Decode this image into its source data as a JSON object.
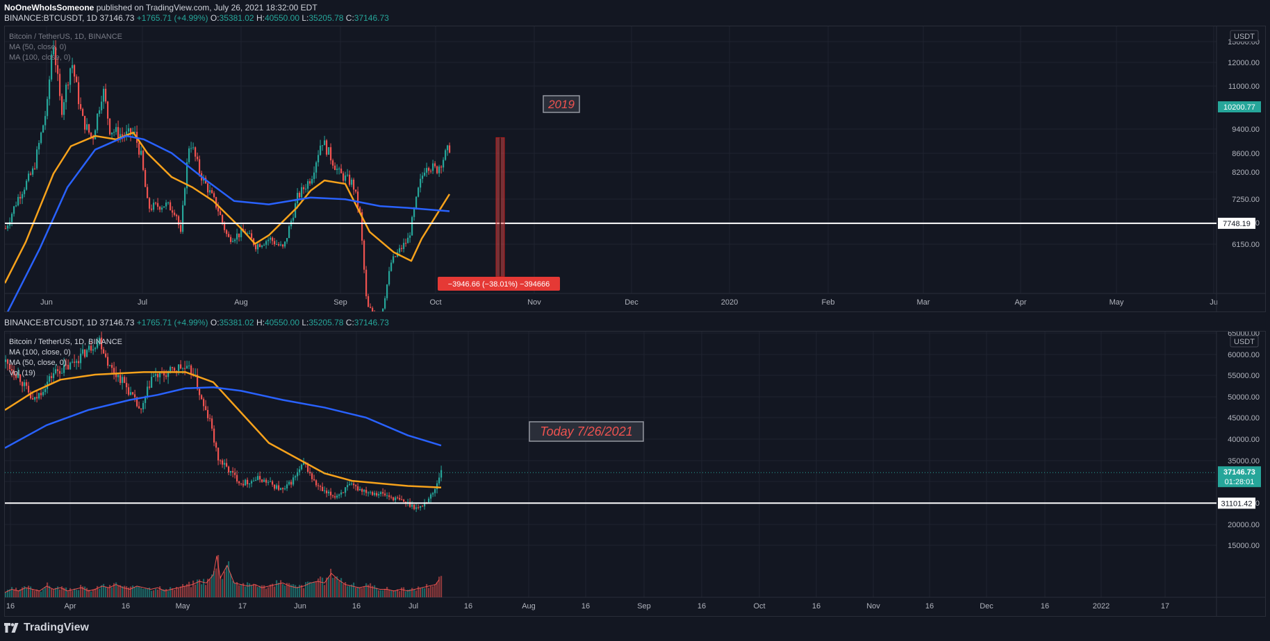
{
  "header": {
    "author": "NoOneWhoIsSomeone",
    "published_text": "published on TradingView.com, July 26, 2021 18:32:00 EDT"
  },
  "ticker_line": {
    "symbol": "BINANCE:BTCUSDT, 1D",
    "last": "37146.73",
    "change": "+1765.71 (+4.99%)",
    "o_label": "O:",
    "o": "35381.02",
    "h_label": "H:",
    "h": "40550.00",
    "l_label": "L:",
    "l": "35205.78",
    "c_label": "C:",
    "c": "37146.73"
  },
  "footer": {
    "brand": "TradingView"
  },
  "colors": {
    "background": "#131722",
    "up": "#26a69a",
    "down": "#ef5350",
    "ma50": "#f7a21b",
    "ma100": "#2962ff",
    "support": "#ffffff",
    "annotation": "#ef5350",
    "volume_ma": "#ef5350"
  },
  "chart_data": [
    {
      "type": "candlestick",
      "legend": {
        "title": "Bitcoin / TetherUS, 1D, BINANCE",
        "ma1": "MA (50, close, 0)",
        "ma2": "MA (100, close, 0)"
      },
      "currency_badge": "USDT",
      "x_ticks": [
        "Jun",
        "Jul",
        "Aug",
        "Sep",
        "Oct",
        "Nov",
        "Dec",
        "2020",
        "Feb",
        "Mar",
        "Apr",
        "May",
        "Ju"
      ],
      "y_ticks": [
        "13000.00",
        "12000.00",
        "11000.00",
        "9400.00",
        "8600.00",
        "8200.00",
        "7250.00",
        "6650.00",
        "6150.00"
      ],
      "ylim": [
        5700,
        13500
      ],
      "price_points": [
        [
          0,
          7600
        ],
        [
          18,
          8500
        ],
        [
          40,
          9300
        ],
        [
          60,
          11200
        ],
        [
          68,
          13200
        ],
        [
          80,
          11000
        ],
        [
          95,
          12500
        ],
        [
          110,
          10800
        ],
        [
          125,
          10200
        ],
        [
          140,
          11700
        ],
        [
          150,
          10500
        ],
        [
          170,
          10300
        ],
        [
          185,
          10400
        ],
        [
          195,
          9700
        ],
        [
          205,
          8200
        ],
        [
          230,
          8300
        ],
        [
          245,
          8100
        ],
        [
          252,
          7400
        ],
        [
          258,
          8900
        ],
        [
          265,
          10200
        ],
        [
          280,
          9200
        ],
        [
          305,
          8200
        ],
        [
          320,
          7300
        ],
        [
          345,
          7500
        ],
        [
          360,
          7100
        ],
        [
          380,
          7300
        ],
        [
          400,
          7000
        ],
        [
          420,
          8500
        ],
        [
          440,
          9100
        ],
        [
          455,
          10200
        ],
        [
          470,
          9600
        ],
        [
          480,
          9200
        ],
        [
          500,
          8900
        ],
        [
          510,
          8000
        ],
        [
          520,
          5300
        ],
        [
          540,
          5000
        ],
        [
          555,
          6600
        ],
        [
          565,
          6900
        ],
        [
          580,
          7300
        ],
        [
          595,
          8800
        ],
        [
          605,
          9500
        ],
        [
          620,
          9300
        ],
        [
          640,
          10000
        ]
      ],
      "ma50_points": [
        [
          0,
          6000
        ],
        [
          30,
          7200
        ],
        [
          70,
          9200
        ],
        [
          95,
          10000
        ],
        [
          130,
          10300
        ],
        [
          160,
          10200
        ],
        [
          185,
          10400
        ],
        [
          205,
          9800
        ],
        [
          240,
          9100
        ],
        [
          270,
          8800
        ],
        [
          300,
          8400
        ],
        [
          340,
          7600
        ],
        [
          360,
          7150
        ],
        [
          380,
          7400
        ],
        [
          420,
          8200
        ],
        [
          440,
          8700
        ],
        [
          460,
          9000
        ],
        [
          490,
          8900
        ],
        [
          525,
          7500
        ],
        [
          560,
          6900
        ],
        [
          585,
          6650
        ],
        [
          600,
          7300
        ],
        [
          640,
          8600
        ]
      ],
      "ma100_points": [
        [
          0,
          5000
        ],
        [
          50,
          7000
        ],
        [
          90,
          8800
        ],
        [
          130,
          9900
        ],
        [
          175,
          10300
        ],
        [
          200,
          10200
        ],
        [
          240,
          9800
        ],
        [
          290,
          9000
        ],
        [
          330,
          8400
        ],
        [
          380,
          8300
        ],
        [
          440,
          8500
        ],
        [
          490,
          8450
        ],
        [
          540,
          8250
        ],
        [
          580,
          8200
        ],
        [
          640,
          8100
        ]
      ],
      "support_level": "7748.19",
      "price_label": "10200.77",
      "annotation_year": "2019",
      "measure": {
        "from": 10250,
        "to": 6200,
        "label": "−3946.66 (−38.01%) −394666"
      }
    },
    {
      "type": "candlestick",
      "legend": {
        "title": "Bitcoin / TetherUS, 1D, BINANCE",
        "ma1": "MA (100, close, 0)",
        "ma2": "MA (50, close, 0)",
        "vol": "Vol (19)"
      },
      "currency_badge": "USDT",
      "x_ticks": [
        "16",
        "Apr",
        "16",
        "May",
        "17",
        "Jun",
        "16",
        "Jul",
        "16",
        "Aug",
        "16",
        "Sep",
        "16",
        "Oct",
        "16",
        "Nov",
        "16",
        "Dec",
        "16",
        "2022",
        "17"
      ],
      "y_ticks": [
        "65000.00",
        "60000.00",
        "55000.00",
        "50000.00",
        "45000.00",
        "40000.00",
        "35000.00",
        "30000.00",
        "25000.00",
        "20000.00",
        "15000.00"
      ],
      "ylim": [
        12500,
        65000
      ],
      "price_points": [
        [
          0,
          59000
        ],
        [
          20,
          56000
        ],
        [
          40,
          51000
        ],
        [
          70,
          57000
        ],
        [
          90,
          58000
        ],
        [
          115,
          61000
        ],
        [
          135,
          63500
        ],
        [
          150,
          58000
        ],
        [
          170,
          55000
        ],
        [
          195,
          49000
        ],
        [
          210,
          56000
        ],
        [
          230,
          56500
        ],
        [
          250,
          58000
        ],
        [
          270,
          57000
        ],
        [
          285,
          50000
        ],
        [
          295,
          47000
        ],
        [
          305,
          40000
        ],
        [
          325,
          37000
        ],
        [
          340,
          35000
        ],
        [
          365,
          36000
        ],
        [
          380,
          35000
        ],
        [
          400,
          33500
        ],
        [
          415,
          36000
        ],
        [
          430,
          39000
        ],
        [
          445,
          35000
        ],
        [
          460,
          33000
        ],
        [
          475,
          32500
        ],
        [
          495,
          34500
        ],
        [
          520,
          33500
        ],
        [
          540,
          33000
        ],
        [
          560,
          32000
        ],
        [
          580,
          31000
        ],
        [
          595,
          30000
        ],
        [
          605,
          31500
        ],
        [
          615,
          33000
        ],
        [
          622,
          35500
        ],
        [
          628,
          38500
        ]
      ],
      "ma100_points": [
        [
          0,
          42000
        ],
        [
          60,
          46500
        ],
        [
          120,
          49500
        ],
        [
          180,
          51500
        ],
        [
          220,
          52500
        ],
        [
          260,
          53800
        ],
        [
          300,
          54000
        ],
        [
          340,
          53300
        ],
        [
          400,
          51500
        ],
        [
          460,
          50000
        ],
        [
          520,
          48000
        ],
        [
          580,
          44500
        ],
        [
          628,
          42500
        ]
      ],
      "ma50_points": [
        [
          0,
          49500
        ],
        [
          40,
          53000
        ],
        [
          80,
          55500
        ],
        [
          130,
          56500
        ],
        [
          200,
          57000
        ],
        [
          260,
          57000
        ],
        [
          300,
          55000
        ],
        [
          340,
          49000
        ],
        [
          380,
          43000
        ],
        [
          420,
          40000
        ],
        [
          460,
          37000
        ],
        [
          500,
          35500
        ],
        [
          540,
          35000
        ],
        [
          580,
          34500
        ],
        [
          628,
          34200
        ]
      ],
      "support_level": "31101.42",
      "last_label": "37146.73",
      "countdown": "01:28:01",
      "annotation_text": "Today 7/26/2021",
      "volume_points": [
        [
          0,
          3
        ],
        [
          10,
          5
        ],
        [
          20,
          4
        ],
        [
          30,
          6
        ],
        [
          40,
          5
        ],
        [
          50,
          4
        ],
        [
          60,
          7
        ],
        [
          70,
          5
        ],
        [
          80,
          6
        ],
        [
          90,
          4
        ],
        [
          100,
          5
        ],
        [
          110,
          6
        ],
        [
          120,
          4
        ],
        [
          130,
          5
        ],
        [
          140,
          7
        ],
        [
          150,
          6
        ],
        [
          160,
          8
        ],
        [
          170,
          6
        ],
        [
          180,
          5
        ],
        [
          190,
          7
        ],
        [
          200,
          6
        ],
        [
          210,
          5
        ],
        [
          220,
          6
        ],
        [
          230,
          4
        ],
        [
          240,
          5
        ],
        [
          250,
          6
        ],
        [
          260,
          7
        ],
        [
          270,
          8
        ],
        [
          280,
          10
        ],
        [
          290,
          9
        ],
        [
          300,
          14
        ],
        [
          305,
          26
        ],
        [
          310,
          12
        ],
        [
          320,
          20
        ],
        [
          330,
          9
        ],
        [
          340,
          8
        ],
        [
          350,
          7
        ],
        [
          360,
          8
        ],
        [
          370,
          6
        ],
        [
          380,
          7
        ],
        [
          390,
          8
        ],
        [
          400,
          9
        ],
        [
          410,
          7
        ],
        [
          420,
          6
        ],
        [
          430,
          7
        ],
        [
          440,
          9
        ],
        [
          450,
          10
        ],
        [
          460,
          9
        ],
        [
          470,
          15
        ],
        [
          480,
          11
        ],
        [
          490,
          8
        ],
        [
          500,
          7
        ],
        [
          510,
          6
        ],
        [
          520,
          7
        ],
        [
          530,
          6
        ],
        [
          540,
          5
        ],
        [
          550,
          5
        ],
        [
          560,
          4
        ],
        [
          570,
          5
        ],
        [
          580,
          4
        ],
        [
          590,
          5
        ],
        [
          600,
          6
        ],
        [
          610,
          7
        ],
        [
          620,
          8
        ],
        [
          625,
          11
        ]
      ]
    }
  ]
}
